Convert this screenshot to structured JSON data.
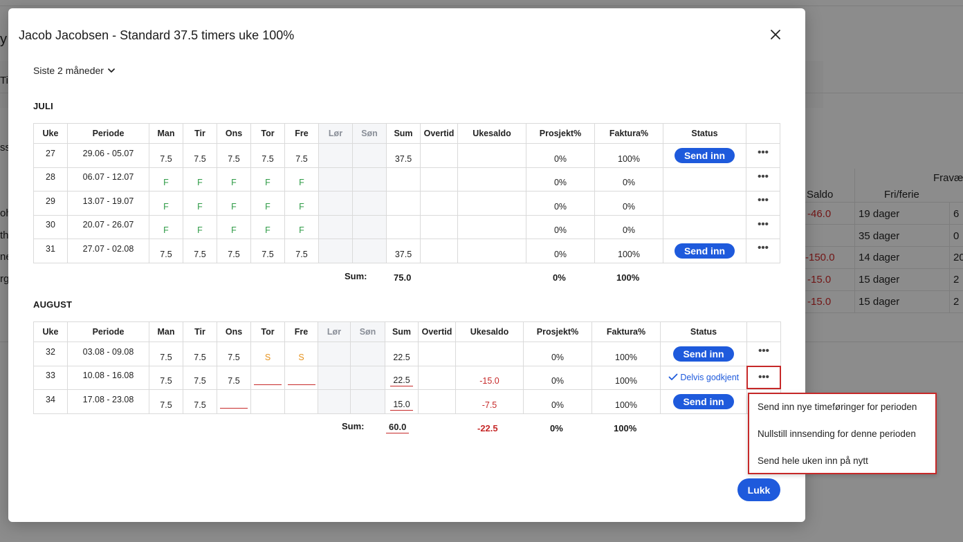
{
  "background": {
    "frag_y": "y",
    "frag_ti": "Ti",
    "frag_ss": "ss.",
    "frag_oh": "oh",
    "frag_th": "th",
    "frag_ne": "ne",
    "frag_rg": "rgl",
    "header_frav": "Fravæ",
    "header_saldo": "Saldo",
    "header_fri": "Fri/ferie",
    "rows": [
      {
        "saldo": "-46.0",
        "fri": "19 dager",
        "extra": "6"
      },
      {
        "saldo": "",
        "fri": "35 dager",
        "extra": "0"
      },
      {
        "saldo": "-150.0",
        "fri": "14 dager",
        "extra": "20"
      },
      {
        "saldo": "-15.0",
        "fri": "15 dager",
        "extra": "2"
      },
      {
        "saldo": "-15.0",
        "fri": "15 dager",
        "extra": "2"
      }
    ]
  },
  "modal": {
    "title": "Jacob Jacobsen - Standard 37.5 timers uke 100%",
    "period_selector": "Siste 2 måneder",
    "close_label": "×",
    "close_button_label": "Lukk"
  },
  "columns": [
    "Uke",
    "Periode",
    "Man",
    "Tir",
    "Ons",
    "Tor",
    "Fre",
    "Lør",
    "Søn",
    "Sum",
    "Overtid",
    "Ukesaldo",
    "Prosjekt%",
    "Faktura%",
    "Status",
    ""
  ],
  "months": [
    {
      "name": "JULI",
      "rows": [
        {
          "week": "27",
          "period": "29.06 - 05.07",
          "man": "7.5",
          "tir": "7.5",
          "ons": "7.5",
          "tor": "7.5",
          "fre": "7.5",
          "sum": "37.5",
          "overtid": "",
          "ukesaldo": "",
          "prosjekt": "0%",
          "faktura": "100%",
          "status": "Send inn"
        },
        {
          "week": "28",
          "period": "06.07 - 12.07",
          "man": "F",
          "tir": "F",
          "ons": "F",
          "tor": "F",
          "fre": "F",
          "sum": "",
          "overtid": "",
          "ukesaldo": "",
          "prosjekt": "0%",
          "faktura": "0%",
          "status": ""
        },
        {
          "week": "29",
          "period": "13.07 - 19.07",
          "man": "F",
          "tir": "F",
          "ons": "F",
          "tor": "F",
          "fre": "F",
          "sum": "",
          "overtid": "",
          "ukesaldo": "",
          "prosjekt": "0%",
          "faktura": "0%",
          "status": ""
        },
        {
          "week": "30",
          "period": "20.07 - 26.07",
          "man": "F",
          "tir": "F",
          "ons": "F",
          "tor": "F",
          "fre": "F",
          "sum": "",
          "overtid": "",
          "ukesaldo": "",
          "prosjekt": "0%",
          "faktura": "0%",
          "status": ""
        },
        {
          "week": "31",
          "period": "27.07 - 02.08",
          "man": "7.5",
          "tir": "7.5",
          "ons": "7.5",
          "tor": "7.5",
          "fre": "7.5",
          "sum": "37.5",
          "overtid": "",
          "ukesaldo": "",
          "prosjekt": "0%",
          "faktura": "100%",
          "status": "Send inn"
        }
      ],
      "sum_label": "Sum:",
      "sum_total": "75.0",
      "sum_ukesaldo": "",
      "sum_prosjekt": "0%",
      "sum_faktura": "100%"
    },
    {
      "name": "AUGUST",
      "rows": [
        {
          "week": "32",
          "period": "03.08 - 09.08",
          "man": "7.5",
          "tir": "7.5",
          "ons": "7.5",
          "tor": "S",
          "fre": "S",
          "sum": "22.5",
          "overtid": "",
          "ukesaldo": "",
          "prosjekt": "0%",
          "faktura": "100%",
          "status": "Send inn"
        },
        {
          "week": "33",
          "period": "10.08 - 16.08",
          "man": "7.5",
          "tir": "7.5",
          "ons": "7.5",
          "tor": "",
          "fre": "",
          "sum": "22.5",
          "overtid": "",
          "ukesaldo": "-15.0",
          "prosjekt": "0%",
          "faktura": "100%",
          "status": "Delvis godkjent"
        },
        {
          "week": "34",
          "period": "17.08 - 23.08",
          "man": "7.5",
          "tir": "7.5",
          "ons": "",
          "tor": "",
          "fre": "",
          "sum": "15.0",
          "overtid": "",
          "ukesaldo": "-7.5",
          "prosjekt": "0%",
          "faktura": "100%",
          "status": "Send inn"
        }
      ],
      "sum_label": "Sum:",
      "sum_total": "60.0",
      "sum_ukesaldo": "-22.5",
      "sum_prosjekt": "0%",
      "sum_faktura": "100%"
    }
  ],
  "context_menu": {
    "items": [
      "Send inn nye timeføringer for perioden",
      "Nullstill innsending for denne perioden",
      "Send hele uken inn på nytt"
    ]
  },
  "colors": {
    "accent": "#1e5adc",
    "negative": "#c62828",
    "vacation": "#2e9b46",
    "sick": "#e6931f"
  }
}
